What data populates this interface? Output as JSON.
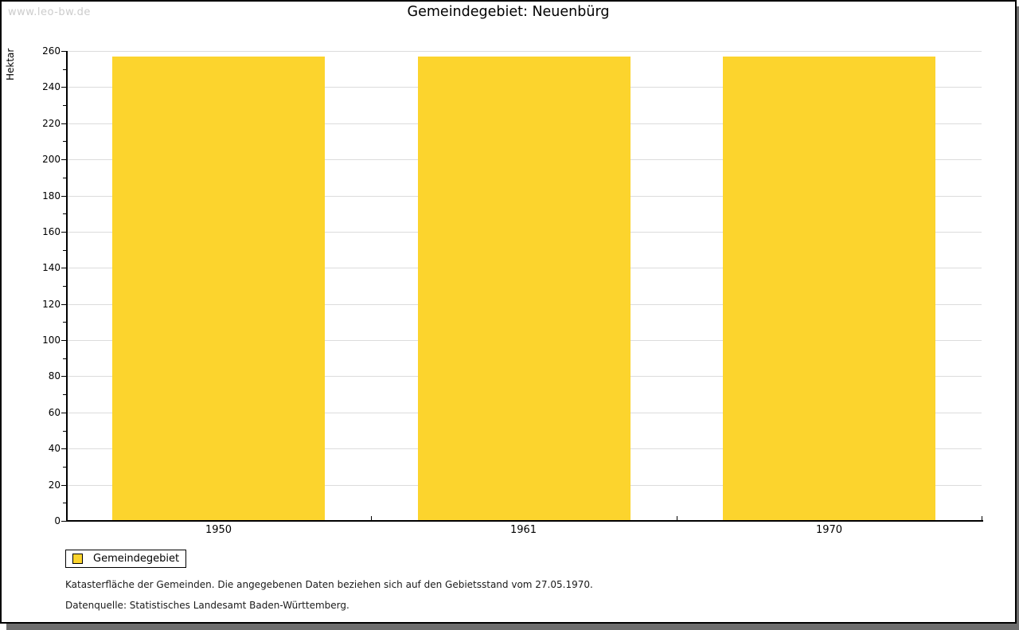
{
  "watermark": "www.leo-bw.de",
  "chart_data": {
    "type": "bar",
    "title": "Gemeindegebiet: Neuenbürg",
    "categories": [
      "1950",
      "1961",
      "1970"
    ],
    "series": [
      {
        "name": "Gemeindegebiet",
        "values": [
          257,
          257,
          257
        ],
        "color": "#FCD42D"
      }
    ],
    "xlabel": "",
    "ylabel": "Hektar",
    "ylim": [
      0,
      260
    ],
    "ytick_step": 20,
    "ytick_minor_step": 10,
    "grid": true,
    "legend_position": "bottom-left"
  },
  "legend": {
    "items": [
      {
        "label": "Gemeindegebiet",
        "color": "#FCD42D"
      }
    ]
  },
  "footnotes": [
    "Katasterfläche der Gemeinden. Die angegebenen Daten beziehen sich auf den Gebietsstand vom 27.05.1970.",
    "Datenquelle: Statistisches Landesamt Baden-Württemberg."
  ],
  "colors": {
    "bar": "#FCD42D",
    "grid": "#DCDCDC",
    "axis": "#000000",
    "shadow": "#6E6E6E",
    "watermark": "#CCCCCC",
    "background": "#FFFFFF"
  }
}
